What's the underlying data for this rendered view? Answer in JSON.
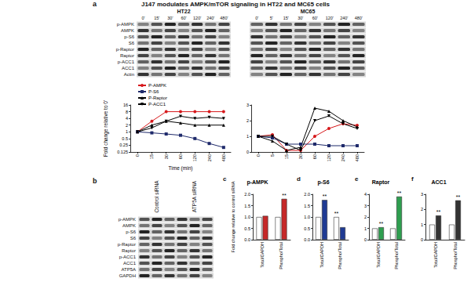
{
  "panel_a": {
    "label": "a",
    "title": "J147 modulates AMPK/mTOR signaling in HT22 and MC65 cells",
    "blots": [
      {
        "cell": "HT22",
        "lanes": [
          "0'",
          "15'",
          "30'",
          "60'",
          "120'",
          "240'",
          "480'"
        ],
        "rows": [
          "p-AMPK",
          "AMPK",
          "p-S6",
          "S6",
          "p-Raptor",
          "Raptor",
          "p-ACC1",
          "ACC1",
          "Actin"
        ]
      },
      {
        "cell": "MC65",
        "lanes": [
          "0'",
          "5'",
          "15'",
          "30'",
          "60'",
          "120'",
          "240'",
          "480'"
        ]
      }
    ]
  },
  "panel_b": {
    "label": "b",
    "lanes": [
      "Control siRNA",
      "ATP5A siRNA"
    ],
    "rows": [
      "p-AMPK",
      "AMPK",
      "p-S6",
      "S6",
      "p-Raptor",
      "Raptor",
      "p-ACC1",
      "ACC1",
      "ATP5A",
      "GAPDH"
    ]
  },
  "chart_data": [
    {
      "type": "line",
      "x_label": "Time (min)",
      "y_label": "Fold change relative to 0'",
      "categories": [
        "0",
        "15",
        "30",
        "60",
        "120",
        "240",
        "480"
      ],
      "log": "y",
      "ylim": [
        0.125,
        16
      ],
      "yticks": [
        0.125,
        0.25,
        0.5,
        1,
        2,
        4,
        8,
        16
      ],
      "legend": "upper left",
      "series": [
        {
          "name": "P-AMPK",
          "color": "#d7191c",
          "marker": "circle",
          "values": [
            1,
            3,
            8,
            8,
            8,
            8,
            8
          ]
        },
        {
          "name": "P-S6",
          "color": "#1f2a6b",
          "marker": "square",
          "values": [
            1,
            0.9,
            0.8,
            0.7,
            0.5,
            0.3,
            0.2
          ]
        },
        {
          "name": "P-Raptor",
          "color": "#000000",
          "marker": "triangle",
          "values": [
            1,
            2,
            3,
            2.5,
            2,
            2,
            2
          ]
        },
        {
          "name": "P-ACC1",
          "color": "#000000",
          "marker": "triangle-down",
          "values": [
            1,
            1.5,
            3,
            5,
            4,
            4.5,
            4
          ]
        }
      ]
    },
    {
      "type": "line",
      "categories": [
        "0",
        "5",
        "15",
        "30",
        "60",
        "120",
        "240",
        "480"
      ],
      "ylim": [
        0,
        3
      ],
      "yticks": [
        0,
        1,
        2,
        3
      ],
      "series": [
        {
          "name": "P-AMPK",
          "color": "#d7191c",
          "marker": "circle",
          "values": [
            1,
            1.1,
            0.1,
            0.1,
            1,
            1.5,
            1.8,
            1.7
          ]
        },
        {
          "name": "P-S6",
          "color": "#1f2a6b",
          "marker": "square",
          "values": [
            1,
            0.9,
            0.5,
            0.5,
            0.5,
            0.4,
            0.4,
            0.4
          ]
        },
        {
          "name": "P-Raptor",
          "color": "#000000",
          "marker": "triangle",
          "values": [
            1,
            0.7,
            0.1,
            0.3,
            2.8,
            2.6,
            2,
            1.6
          ]
        },
        {
          "name": "P-ACC1",
          "color": "#000000",
          "marker": "triangle-down",
          "values": [
            1,
            1,
            0.5,
            0.1,
            2,
            2.3,
            1.8,
            1.5
          ]
        }
      ]
    },
    {
      "type": "bar",
      "panel": "c",
      "title": "p-AMPK",
      "y_label": "Fold change relative to control siRNA",
      "categories": [
        "Total/GAPDH",
        "Phospho/Total"
      ],
      "ylim": [
        0,
        2
      ],
      "yticks": [
        {
          "value": 0,
          "label": "0.0"
        },
        {
          "value": 0.5,
          "label": "0.5"
        },
        {
          "value": 1,
          "label": "1.0"
        },
        {
          "value": 1.5,
          "label": "1.5"
        },
        {
          "value": 2,
          "label": "2.0"
        }
      ],
      "series": [
        {
          "color": "#ffffff",
          "values": [
            1,
            1
          ]
        },
        {
          "color": "#c62828",
          "values": [
            1.05,
            1.8
          ]
        }
      ],
      "annotations": [
        {
          "category": "Phospho/Total",
          "text": "**"
        }
      ]
    },
    {
      "type": "bar",
      "panel": "d",
      "title": "p-S6",
      "categories": [
        "Total/GAPDH",
        "Phospho/Total"
      ],
      "ylim": [
        0,
        2
      ],
      "yticks": [
        {
          "value": 0,
          "label": "0.0"
        },
        {
          "value": 0.5,
          "label": "0.5"
        },
        {
          "value": 1,
          "label": "1.0"
        },
        {
          "value": 1.5,
          "label": "1.5"
        },
        {
          "value": 2,
          "label": "2.0"
        }
      ],
      "series": [
        {
          "color": "#ffffff",
          "values": [
            1,
            1
          ]
        },
        {
          "color": "#1f3a93",
          "values": [
            1.75,
            0.55
          ]
        }
      ],
      "annotations": [
        {
          "category": "Total/GAPDH",
          "text": "**"
        },
        {
          "category": "Phospho/Total",
          "text": "**"
        }
      ]
    },
    {
      "type": "bar",
      "panel": "e",
      "title": "Raptor",
      "categories": [
        "Total/GAPDH",
        "Phospho/Total"
      ],
      "ylim": [
        0,
        4
      ],
      "yticks": [
        0,
        1,
        2,
        3,
        4
      ],
      "series": [
        {
          "color": "#ffffff",
          "values": [
            1,
            1
          ]
        },
        {
          "color": "#2e9e4f",
          "values": [
            1.1,
            3.8
          ]
        }
      ],
      "annotations": [
        {
          "category": "Total/GAPDH",
          "text": "**"
        },
        {
          "category": "Phospho/Total",
          "text": "**"
        }
      ]
    },
    {
      "type": "bar",
      "panel": "f",
      "title": "ACC1",
      "categories": [
        "Total/GAPDH",
        "Phospho/Total"
      ],
      "ylim": [
        0,
        3
      ],
      "yticks": [
        0,
        1,
        2,
        3
      ],
      "series": [
        {
          "color": "#ffffff",
          "values": [
            1,
            1
          ]
        },
        {
          "color": "#333333",
          "values": [
            1.6,
            2.6
          ]
        }
      ],
      "annotations": [
        {
          "category": "Total/GAPDH",
          "text": "**"
        },
        {
          "category": "Phospho/Total",
          "text": "**"
        }
      ]
    }
  ]
}
